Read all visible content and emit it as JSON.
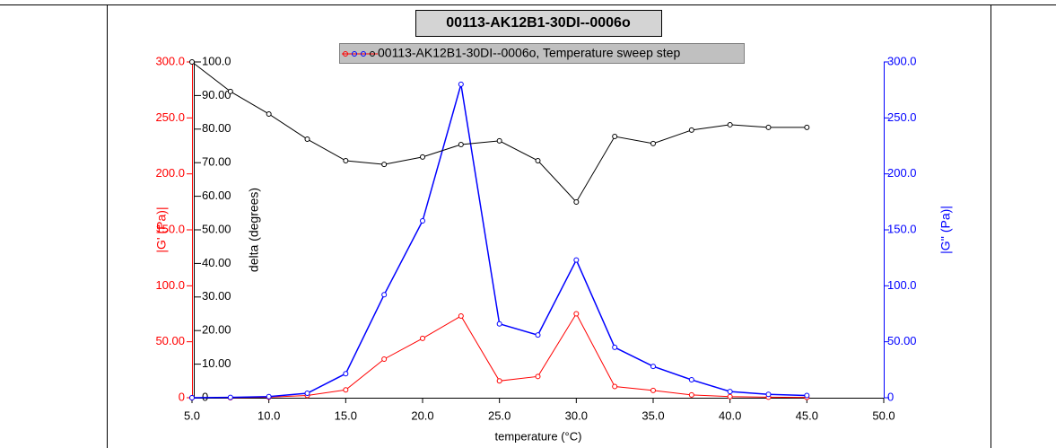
{
  "chart_data": {
    "type": "line",
    "title": "00113-AK12B1-30DI--0006o",
    "legend": {
      "label": "00113-AK12B1-30DI--0006o, Temperature sweep step"
    },
    "x_label": "temperature (°C)",
    "y_label": "|G' (Pa)|",
    "y2_label": "|G'' (Pa)|",
    "y3_label": "delta (degrees)",
    "x": [
      5,
      7.5,
      10,
      12.5,
      15,
      17.5,
      20,
      22.5,
      25,
      27.5,
      30,
      32.5,
      35,
      37.5,
      40,
      42.5,
      45
    ],
    "series": [
      {
        "axis": "y",
        "color": "#ff0000",
        "values": [
          0,
          0,
          0.5,
          2,
          7,
          34.5,
          53,
          73,
          15,
          19,
          75,
          10,
          6.5,
          2.5,
          1,
          0.5,
          0.3
        ]
      },
      {
        "axis": "y2",
        "color": "#0000ff",
        "values": [
          0,
          0.3,
          1,
          4,
          21.5,
          92,
          158,
          280,
          66,
          56,
          123,
          45,
          28,
          16,
          5.5,
          3,
          2
        ]
      },
      {
        "axis": "y3",
        "color": "#000000",
        "values": [
          100,
          91.2,
          84.5,
          77,
          70.6,
          69.5,
          71.7,
          75.4,
          76.5,
          70.6,
          58.3,
          77.8,
          75.7,
          79.7,
          81.3,
          80.5,
          80.5
        ]
      }
    ],
    "xlim": [
      5,
      50
    ],
    "xticks": [
      {
        "value": 5,
        "label": "5.0"
      },
      {
        "value": 10,
        "label": "10.0"
      },
      {
        "value": 15,
        "label": "15.0"
      },
      {
        "value": 20,
        "label": "20.0"
      },
      {
        "value": 25,
        "label": "25.0"
      },
      {
        "value": 30,
        "label": "30.0"
      },
      {
        "value": 35,
        "label": "35.0"
      },
      {
        "value": 40,
        "label": "40.0"
      },
      {
        "value": 45,
        "label": "45.0"
      },
      {
        "value": 50,
        "label": "50.0"
      }
    ],
    "ylim": [
      0,
      300
    ],
    "yticks": [
      0,
      {
        "value": 50,
        "label": "50.00"
      },
      {
        "value": 100,
        "label": "100.0"
      },
      {
        "value": 150,
        "label": "150.0"
      },
      {
        "value": 200,
        "label": "200.0"
      },
      {
        "value": 250,
        "label": "250.0"
      },
      {
        "value": 300,
        "label": "300.0"
      }
    ],
    "y2lim": [
      0,
      300
    ],
    "y2ticks": [
      0,
      {
        "value": 50,
        "label": "50.00"
      },
      {
        "value": 100,
        "label": "100.0"
      },
      {
        "value": 150,
        "label": "150.0"
      },
      {
        "value": 200,
        "label": "200.0"
      },
      {
        "value": 250,
        "label": "250.0"
      },
      {
        "value": 300,
        "label": "300.0"
      }
    ],
    "y3lim": [
      0,
      100
    ],
    "y3ticks": [
      0,
      {
        "value": 10,
        "label": "10.00"
      },
      {
        "value": 20,
        "label": "20.00"
      },
      {
        "value": 30,
        "label": "30.00"
      },
      {
        "value": 40,
        "label": "40.00"
      },
      {
        "value": 50,
        "label": "50.00"
      },
      {
        "value": 60,
        "label": "60.00"
      },
      {
        "value": 70,
        "label": "70.00"
      },
      {
        "value": 80,
        "label": "80.00"
      },
      {
        "value": 90,
        "label": "90.00"
      },
      {
        "value": 100,
        "label": "100.0"
      }
    ]
  }
}
